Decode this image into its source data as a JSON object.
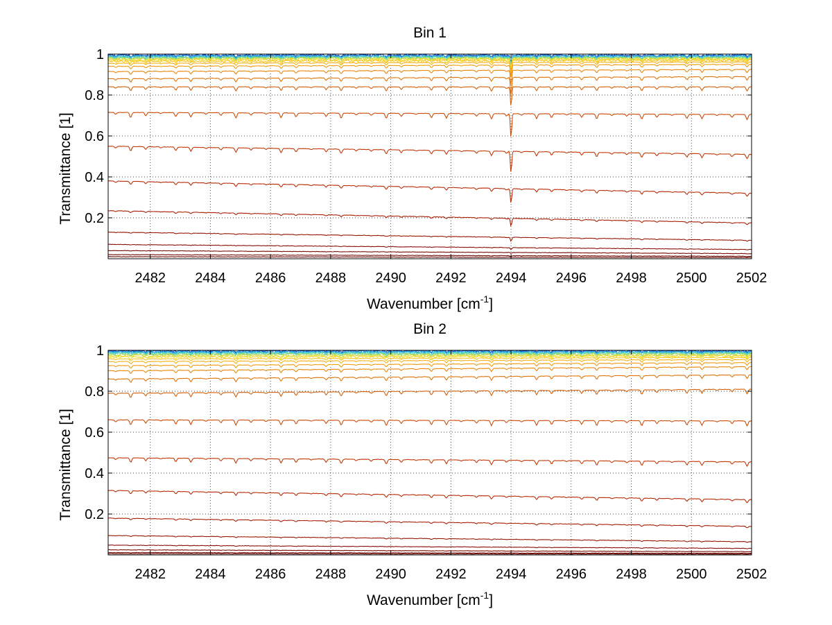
{
  "chart_data": [
    {
      "type": "line",
      "title": "Bin 1",
      "xlabel": "Wavenumber [cm",
      "xlabel_sup": "-1",
      "xlabel_end": "]",
      "ylabel": "Transmittance [1]",
      "xlim": [
        2480.6,
        2502
      ],
      "ylim": [
        0,
        1
      ],
      "xticks": [
        2482,
        2484,
        2486,
        2488,
        2490,
        2492,
        2494,
        2496,
        2498,
        2500,
        2502
      ],
      "xtick_labels": [
        "2482",
        "2484",
        "2486",
        "2488",
        "2490",
        "2492",
        "2494",
        "2496",
        "2498",
        "2500",
        "2502"
      ],
      "yticks": [
        0.2,
        0.4,
        0.6,
        0.8,
        1
      ],
      "ytick_labels": [
        "0.2",
        "0.4",
        "0.6",
        "0.8",
        "1"
      ],
      "grid": true,
      "line_spacing": 0.5,
      "absorption_line_offset": 0.85,
      "strong_line_x": 2494,
      "series": [
        {
          "start": 0.995,
          "end": 0.995,
          "depth": 0.008,
          "color": "#0a3da6"
        },
        {
          "start": 0.993,
          "end": 0.993,
          "depth": 0.008,
          "color": "#1f6fd8"
        },
        {
          "start": 0.99,
          "end": 0.99,
          "depth": 0.008,
          "color": "#2aa7e8"
        },
        {
          "start": 0.987,
          "end": 0.987,
          "depth": 0.008,
          "color": "#36c5d8"
        },
        {
          "start": 0.984,
          "end": 0.985,
          "depth": 0.009,
          "color": "#5cd1a9"
        },
        {
          "start": 0.981,
          "end": 0.982,
          "depth": 0.009,
          "color": "#9bd76a"
        },
        {
          "start": 0.977,
          "end": 0.979,
          "depth": 0.009,
          "color": "#d7dc3c"
        },
        {
          "start": 0.972,
          "end": 0.975,
          "depth": 0.01,
          "color": "#f2d82a"
        },
        {
          "start": 0.965,
          "end": 0.97,
          "depth": 0.011,
          "color": "#f7c51e"
        },
        {
          "start": 0.955,
          "end": 0.962,
          "depth": 0.012,
          "color": "#f5b014"
        },
        {
          "start": 0.94,
          "end": 0.95,
          "depth": 0.013,
          "color": "#f09a0e"
        },
        {
          "start": 0.915,
          "end": 0.925,
          "depth": 0.015,
          "color": "#ea860b"
        },
        {
          "start": 0.88,
          "end": 0.89,
          "depth": 0.018,
          "color": "#e07309"
        },
        {
          "start": 0.84,
          "end": 0.84,
          "depth": 0.02,
          "color": "#d45f08"
        },
        {
          "start": 0.715,
          "end": 0.705,
          "depth": 0.025,
          "color": "#cc4a07"
        },
        {
          "start": 0.55,
          "end": 0.51,
          "depth": 0.022,
          "color": "#c23806"
        },
        {
          "start": 0.38,
          "end": 0.32,
          "depth": 0.015,
          "color": "#b82a05"
        },
        {
          "start": 0.235,
          "end": 0.175,
          "depth": 0.008,
          "color": "#a81e04"
        },
        {
          "start": 0.13,
          "end": 0.09,
          "depth": 0.004,
          "color": "#961604"
        },
        {
          "start": 0.07,
          "end": 0.045,
          "depth": 0.002,
          "color": "#861004"
        },
        {
          "start": 0.04,
          "end": 0.025,
          "depth": 0.001,
          "color": "#7a0c04"
        },
        {
          "start": 0.02,
          "end": 0.012,
          "depth": 0.001,
          "color": "#700a04"
        },
        {
          "start": 0.01,
          "end": 0.006,
          "depth": 0.0,
          "color": "#680804"
        }
      ]
    },
    {
      "type": "line",
      "title": "Bin 2",
      "xlabel": "Wavenumber [cm",
      "xlabel_sup": "-1",
      "xlabel_end": "]",
      "ylabel": "Transmittance [1]",
      "xlim": [
        2480.6,
        2502
      ],
      "ylim": [
        0,
        1
      ],
      "xticks": [
        2482,
        2484,
        2486,
        2488,
        2490,
        2492,
        2494,
        2496,
        2498,
        2500,
        2502
      ],
      "xtick_labels": [
        "2482",
        "2484",
        "2486",
        "2488",
        "2490",
        "2492",
        "2494",
        "2496",
        "2498",
        "2500",
        "2502"
      ],
      "yticks": [
        0.2,
        0.4,
        0.6,
        0.8,
        1
      ],
      "ytick_labels": [
        "0.2",
        "0.4",
        "0.6",
        "0.8",
        "1"
      ],
      "grid": true,
      "line_spacing": 0.5,
      "absorption_line_offset": 0.85,
      "series": [
        {
          "start": 0.997,
          "end": 0.997,
          "depth": 0.006,
          "color": "#0a3da6"
        },
        {
          "start": 0.995,
          "end": 0.995,
          "depth": 0.006,
          "color": "#1f6fd8"
        },
        {
          "start": 0.992,
          "end": 0.992,
          "depth": 0.007,
          "color": "#2aa7e8"
        },
        {
          "start": 0.989,
          "end": 0.989,
          "depth": 0.007,
          "color": "#36c5d8"
        },
        {
          "start": 0.985,
          "end": 0.986,
          "depth": 0.008,
          "color": "#5cd1a9"
        },
        {
          "start": 0.98,
          "end": 0.982,
          "depth": 0.008,
          "color": "#9bd76a"
        },
        {
          "start": 0.974,
          "end": 0.977,
          "depth": 0.009,
          "color": "#d7dc3c"
        },
        {
          "start": 0.967,
          "end": 0.972,
          "depth": 0.01,
          "color": "#f2d82a"
        },
        {
          "start": 0.958,
          "end": 0.965,
          "depth": 0.011,
          "color": "#f7c51e"
        },
        {
          "start": 0.945,
          "end": 0.955,
          "depth": 0.012,
          "color": "#f5b014"
        },
        {
          "start": 0.925,
          "end": 0.94,
          "depth": 0.013,
          "color": "#f09a0e"
        },
        {
          "start": 0.9,
          "end": 0.92,
          "depth": 0.015,
          "color": "#ea860b"
        },
        {
          "start": 0.86,
          "end": 0.88,
          "depth": 0.018,
          "color": "#e07309"
        },
        {
          "start": 0.79,
          "end": 0.81,
          "depth": 0.022,
          "color": "#d45f08"
        },
        {
          "start": 0.66,
          "end": 0.655,
          "depth": 0.025,
          "color": "#cc4a07"
        },
        {
          "start": 0.475,
          "end": 0.455,
          "depth": 0.022,
          "color": "#c23806"
        },
        {
          "start": 0.315,
          "end": 0.27,
          "depth": 0.015,
          "color": "#b82a05"
        },
        {
          "start": 0.18,
          "end": 0.14,
          "depth": 0.008,
          "color": "#a81e04"
        },
        {
          "start": 0.095,
          "end": 0.065,
          "depth": 0.004,
          "color": "#961604"
        },
        {
          "start": 0.048,
          "end": 0.032,
          "depth": 0.002,
          "color": "#861004"
        },
        {
          "start": 0.025,
          "end": 0.016,
          "depth": 0.001,
          "color": "#7a0c04"
        },
        {
          "start": 0.012,
          "end": 0.008,
          "depth": 0.001,
          "color": "#700a04"
        },
        {
          "start": 0.006,
          "end": 0.004,
          "depth": 0.0,
          "color": "#680804"
        }
      ]
    }
  ]
}
